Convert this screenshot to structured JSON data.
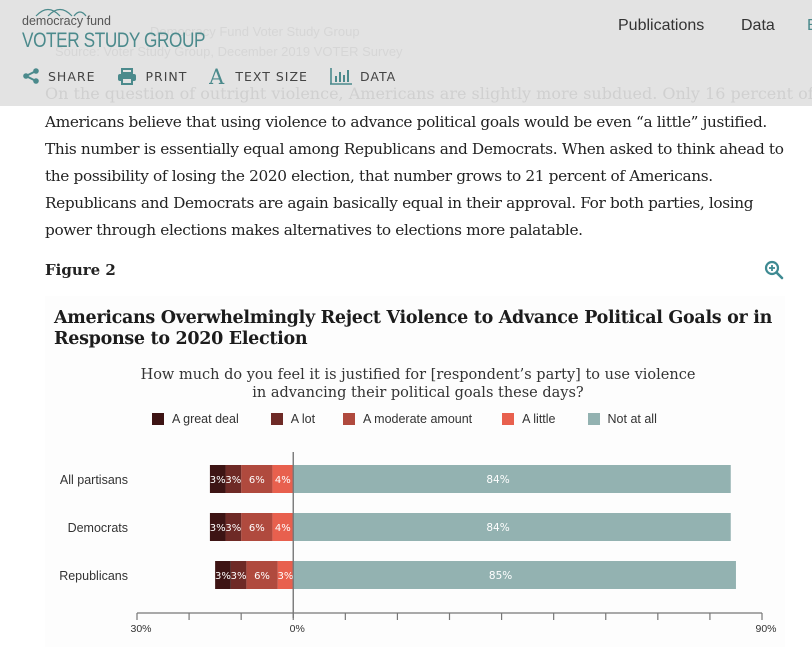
{
  "header": {
    "logo_small": "democracy fund",
    "logo_big": "VOTER STUDY GROUP",
    "ghost_text_1": "Democracy Fund Voter Study Group",
    "ghost_text_2": "Source: Voter Study Group, December 2019 VOTER Survey",
    "nav": [
      {
        "label": "Publications"
      },
      {
        "label": "Data"
      },
      {
        "label": "E"
      }
    ],
    "tools": [
      {
        "label": "SHARE",
        "icon": "share-icon"
      },
      {
        "label": "PRINT",
        "icon": "print-icon"
      },
      {
        "label": "TEXT SIZE",
        "icon": "text-size-icon"
      },
      {
        "label": "DATA",
        "icon": "bar-chart-icon"
      }
    ],
    "accent_color": "#4b8a8c"
  },
  "article": {
    "ghost_line": "On the question of outright violence, Americans are slightly more subdued. Only 16 percent of",
    "paragraph": "Americans believe that using violence to advance political goals would be even “a little” justified. This number is essentially equal among Republicans and Democrats. When asked to think ahead to the possibility of losing the 2020 election, that number grows to 21 percent of Americans. Republicans and Democrats are again basically equal in their approval. For both parties, losing power through elections makes alternatives to elections more palatable.",
    "figure_label": "Figure 2"
  },
  "chart_data": {
    "type": "bar",
    "orientation": "horizontal-diverging-stacked",
    "title": "Americans Overwhelmingly Reject Violence to Advance Political Goals or in Response to 2020 Election",
    "subtitle": "How much do you feel it is justified for [respondent’s party] to use violence in advancing their political goals these days?",
    "categories": [
      "All partisans",
      "Democrats",
      "Republicans"
    ],
    "series": [
      {
        "name": "A great deal",
        "color": "#3d1414",
        "side": "left",
        "values": [
          3,
          3,
          3
        ]
      },
      {
        "name": "A lot",
        "color": "#6e2a26",
        "side": "left",
        "values": [
          3,
          3,
          3
        ]
      },
      {
        "name": "A moderate amount",
        "color": "#b04a3e",
        "side": "left",
        "values": [
          6,
          6,
          6
        ]
      },
      {
        "name": "A little",
        "color": "#e8604e",
        "side": "left",
        "values": [
          4,
          4,
          3
        ]
      },
      {
        "name": "Not at all",
        "color": "#93b2b1",
        "side": "right",
        "values": [
          84,
          84,
          85
        ]
      }
    ],
    "xlim": [
      -30,
      90
    ],
    "xticks": [
      -30,
      -20,
      -10,
      0,
      10,
      20,
      30,
      40,
      50,
      60,
      70,
      80,
      90
    ],
    "xtick_labels": [
      {
        "value": -30,
        "label": "30%"
      },
      {
        "value": 0,
        "label": "0%"
      },
      {
        "value": 90,
        "label": "90%"
      }
    ],
    "legend": "top",
    "grid": false,
    "xlabel": "",
    "ylabel": ""
  }
}
